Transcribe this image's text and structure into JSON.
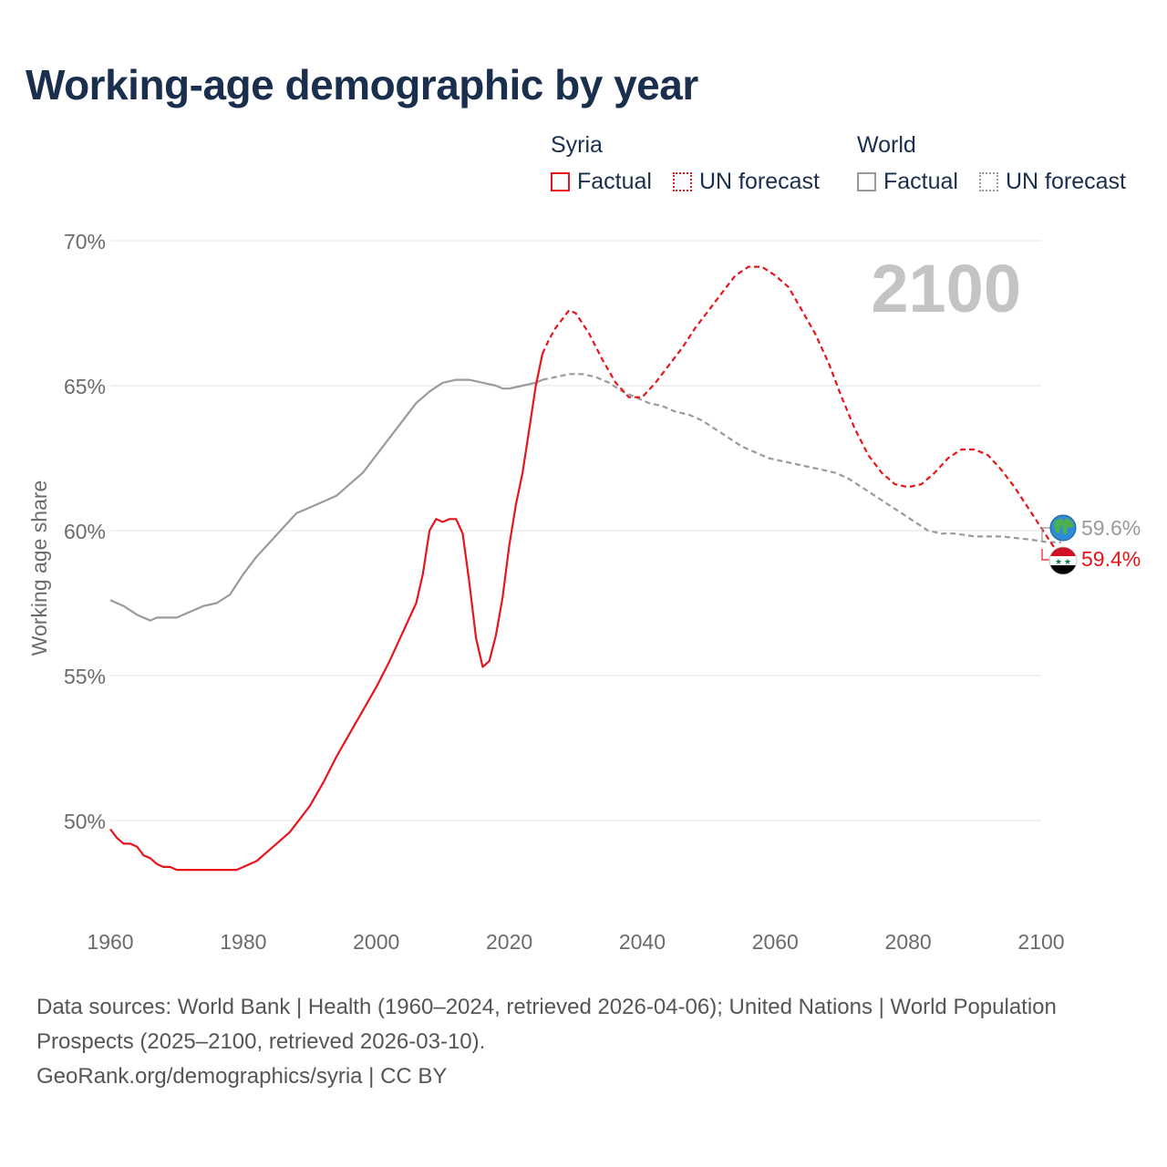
{
  "title": "Working-age demographic by year",
  "legend": {
    "syria": {
      "name": "Syria",
      "factual": "Factual",
      "forecast": "UN forecast"
    },
    "world": {
      "name": "World",
      "factual": "Factual",
      "forecast": "UN forecast"
    }
  },
  "colors": {
    "syria": "#e8141c",
    "world": "#9a9a9a",
    "title": "#1a2e4d",
    "year": "#c4c4c4"
  },
  "footer": {
    "sources": "Data sources: World Bank | Health (1960–2024, retrieved 2026-04-06); United Nations | World Population Prospects (2025–2100, retrieved 2026-03-10).",
    "link": "GeoRank.org/demographics/syria | CC BY"
  },
  "chart_data": {
    "type": "line",
    "title": "Working-age demographic by year",
    "current_year_label": "2100",
    "xlabel": "",
    "ylabel": "Working age share",
    "xlim": [
      1960,
      2100
    ],
    "ylim": [
      47,
      71
    ],
    "x_ticks": [
      "1960",
      "1980",
      "2000",
      "2020",
      "2040",
      "2060",
      "2080",
      "2100"
    ],
    "y_ticks": [
      {
        "value": 50,
        "label": "50%"
      },
      {
        "value": 55,
        "label": "55%"
      },
      {
        "value": 60,
        "label": "60%"
      },
      {
        "value": 65,
        "label": "65%"
      },
      {
        "value": 70,
        "label": "70%"
      }
    ],
    "series": [
      {
        "name": "Syria",
        "factual": [
          [
            1960,
            49.7
          ],
          [
            1961,
            49.4
          ],
          [
            1962,
            49.2
          ],
          [
            1963,
            49.2
          ],
          [
            1964,
            49.1
          ],
          [
            1965,
            48.8
          ],
          [
            1966,
            48.7
          ],
          [
            1967,
            48.5
          ],
          [
            1968,
            48.4
          ],
          [
            1969,
            48.4
          ],
          [
            1970,
            48.3
          ],
          [
            1972,
            48.3
          ],
          [
            1975,
            48.3
          ],
          [
            1979,
            48.3
          ],
          [
            1980,
            48.4
          ],
          [
            1982,
            48.6
          ],
          [
            1984,
            49.0
          ],
          [
            1987,
            49.6
          ],
          [
            1990,
            50.5
          ],
          [
            1992,
            51.3
          ],
          [
            1994,
            52.2
          ],
          [
            1996,
            53.0
          ],
          [
            1998,
            53.8
          ],
          [
            2000,
            54.6
          ],
          [
            2002,
            55.5
          ],
          [
            2004,
            56.5
          ],
          [
            2006,
            57.5
          ],
          [
            2007,
            58.5
          ],
          [
            2008,
            60.0
          ],
          [
            2009,
            60.4
          ],
          [
            2010,
            60.3
          ],
          [
            2011,
            60.4
          ],
          [
            2012,
            60.4
          ],
          [
            2013,
            59.9
          ],
          [
            2014,
            58.2
          ],
          [
            2015,
            56.3
          ],
          [
            2016,
            55.3
          ],
          [
            2017,
            55.5
          ],
          [
            2018,
            56.4
          ],
          [
            2019,
            57.7
          ],
          [
            2020,
            59.5
          ],
          [
            2021,
            60.9
          ],
          [
            2022,
            62.0
          ],
          [
            2023,
            63.5
          ],
          [
            2024,
            65.0
          ],
          [
            2025,
            66.1
          ]
        ],
        "forecast": [
          [
            2025,
            66.1
          ],
          [
            2026,
            66.6
          ],
          [
            2027,
            67.0
          ],
          [
            2028,
            67.3
          ],
          [
            2029,
            67.6
          ],
          [
            2030,
            67.5
          ],
          [
            2032,
            66.8
          ],
          [
            2034,
            65.9
          ],
          [
            2036,
            65.1
          ],
          [
            2038,
            64.6
          ],
          [
            2040,
            64.6
          ],
          [
            2042,
            65.1
          ],
          [
            2044,
            65.7
          ],
          [
            2046,
            66.3
          ],
          [
            2048,
            67.0
          ],
          [
            2050,
            67.6
          ],
          [
            2052,
            68.2
          ],
          [
            2054,
            68.8
          ],
          [
            2056,
            69.1
          ],
          [
            2058,
            69.1
          ],
          [
            2060,
            68.8
          ],
          [
            2062,
            68.4
          ],
          [
            2064,
            67.6
          ],
          [
            2066,
            66.8
          ],
          [
            2068,
            65.8
          ],
          [
            2070,
            64.6
          ],
          [
            2072,
            63.5
          ],
          [
            2074,
            62.6
          ],
          [
            2076,
            62.0
          ],
          [
            2078,
            61.6
          ],
          [
            2080,
            61.5
          ],
          [
            2082,
            61.6
          ],
          [
            2084,
            62.0
          ],
          [
            2086,
            62.5
          ],
          [
            2088,
            62.8
          ],
          [
            2090,
            62.8
          ],
          [
            2092,
            62.6
          ],
          [
            2094,
            62.1
          ],
          [
            2096,
            61.5
          ],
          [
            2098,
            60.8
          ],
          [
            2100,
            60.1
          ],
          [
            2102,
            59.4
          ]
        ],
        "end_value": 59.4,
        "end_label": "59.4%"
      },
      {
        "name": "World",
        "factual": [
          [
            1960,
            57.6
          ],
          [
            1962,
            57.4
          ],
          [
            1964,
            57.1
          ],
          [
            1966,
            56.9
          ],
          [
            1967,
            57.0
          ],
          [
            1970,
            57.0
          ],
          [
            1972,
            57.2
          ],
          [
            1974,
            57.4
          ],
          [
            1976,
            57.5
          ],
          [
            1978,
            57.8
          ],
          [
            1980,
            58.5
          ],
          [
            1982,
            59.1
          ],
          [
            1984,
            59.6
          ],
          [
            1986,
            60.1
          ],
          [
            1988,
            60.6
          ],
          [
            1990,
            60.8
          ],
          [
            1992,
            61.0
          ],
          [
            1994,
            61.2
          ],
          [
            1996,
            61.6
          ],
          [
            1998,
            62.0
          ],
          [
            2000,
            62.6
          ],
          [
            2002,
            63.2
          ],
          [
            2004,
            63.8
          ],
          [
            2006,
            64.4
          ],
          [
            2008,
            64.8
          ],
          [
            2010,
            65.1
          ],
          [
            2012,
            65.2
          ],
          [
            2014,
            65.2
          ],
          [
            2016,
            65.1
          ],
          [
            2018,
            65.0
          ],
          [
            2019,
            64.9
          ],
          [
            2020,
            64.9
          ],
          [
            2022,
            65.0
          ],
          [
            2024,
            65.1
          ],
          [
            2025,
            65.2
          ]
        ],
        "forecast": [
          [
            2025,
            65.2
          ],
          [
            2027,
            65.3
          ],
          [
            2029,
            65.4
          ],
          [
            2031,
            65.4
          ],
          [
            2033,
            65.3
          ],
          [
            2035,
            65.1
          ],
          [
            2037,
            64.8
          ],
          [
            2039,
            64.6
          ],
          [
            2041,
            64.4
          ],
          [
            2043,
            64.3
          ],
          [
            2045,
            64.1
          ],
          [
            2047,
            64.0
          ],
          [
            2049,
            63.8
          ],
          [
            2051,
            63.5
          ],
          [
            2053,
            63.2
          ],
          [
            2055,
            62.9
          ],
          [
            2057,
            62.7
          ],
          [
            2059,
            62.5
          ],
          [
            2061,
            62.4
          ],
          [
            2063,
            62.3
          ],
          [
            2065,
            62.2
          ],
          [
            2067,
            62.1
          ],
          [
            2069,
            62.0
          ],
          [
            2071,
            61.8
          ],
          [
            2073,
            61.5
          ],
          [
            2075,
            61.2
          ],
          [
            2077,
            60.9
          ],
          [
            2079,
            60.6
          ],
          [
            2081,
            60.3
          ],
          [
            2083,
            60.0
          ],
          [
            2085,
            59.9
          ],
          [
            2087,
            59.9
          ],
          [
            2090,
            59.8
          ],
          [
            2094,
            59.8
          ],
          [
            2098,
            59.7
          ],
          [
            2101,
            59.6
          ],
          [
            2103,
            59.6
          ]
        ],
        "end_value": 59.6,
        "end_label": "59.6%"
      }
    ]
  }
}
